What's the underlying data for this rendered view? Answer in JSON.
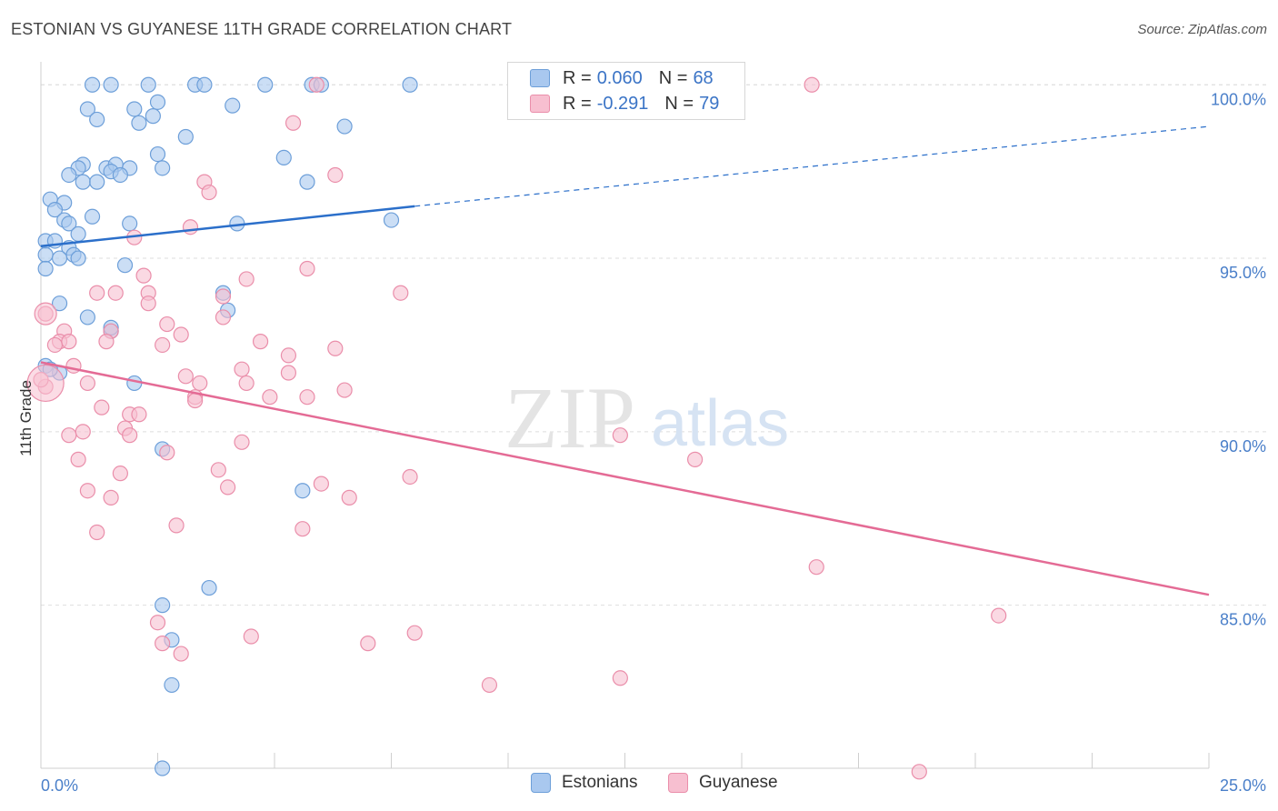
{
  "header": {
    "title": "ESTONIAN VS GUYANESE 11TH GRADE CORRELATION CHART",
    "source": "Source: ZipAtlas.com"
  },
  "legend": {
    "estonians": {
      "r_label": "R =",
      "r_value": "0.060",
      "n_label": "N =",
      "n_value": "68"
    },
    "guyanese": {
      "r_label": "R =",
      "r_value": "-0.291",
      "n_label": "N =",
      "n_value": "79"
    }
  },
  "series_labels": {
    "estonians": "Estonians",
    "guyanese": "Guyanese"
  },
  "watermark": {
    "zip": "ZIP",
    "atlas": "atlas"
  },
  "colors": {
    "blue_fill": "#a9c8ef",
    "blue_stroke": "#6d9fd9",
    "blue_line": "#2b6fca",
    "pink_fill": "#f7bfd0",
    "pink_stroke": "#ea8eaa",
    "pink_line": "#e46b95",
    "tick_text": "#4a7fc9",
    "grid": "#dedede"
  },
  "chart_data": {
    "type": "scatter",
    "title": "ESTONIAN VS GUYANESE 11TH GRADE CORRELATION CHART",
    "xlabel": "",
    "ylabel": "11th Grade",
    "xlim": [
      0,
      25
    ],
    "ylim": [
      80.3,
      100.4
    ],
    "x_tick_labels": [
      "0.0%",
      "25.0%"
    ],
    "y_ticks": [
      85,
      90,
      95,
      100
    ],
    "y_tick_labels": [
      "85.0%",
      "90.0%",
      "95.0%",
      "100.0%"
    ],
    "grid": true,
    "legend_position": "top-center",
    "series": [
      {
        "name": "Estonians",
        "r": 0.06,
        "n": 68,
        "trend": {
          "x": [
            0,
            8.0
          ],
          "y": [
            95.35,
            96.5
          ],
          "dashed_extension_x": [
            8.0,
            25
          ],
          "dashed_extension_y": [
            96.5,
            98.8
          ]
        },
        "points": [
          [
            1.1,
            100
          ],
          [
            1.5,
            100
          ],
          [
            2.3,
            100
          ],
          [
            3.3,
            100
          ],
          [
            3.5,
            100
          ],
          [
            4.8,
            100
          ],
          [
            5.8,
            100
          ],
          [
            6.0,
            100
          ],
          [
            7.9,
            100
          ],
          [
            1.0,
            99.3
          ],
          [
            2.0,
            99.3
          ],
          [
            2.4,
            99.1
          ],
          [
            2.5,
            99.5
          ],
          [
            4.1,
            99.4
          ],
          [
            1.2,
            99.0
          ],
          [
            2.1,
            98.9
          ],
          [
            6.5,
            98.8
          ],
          [
            3.1,
            98.5
          ],
          [
            0.9,
            97.7
          ],
          [
            1.4,
            97.6
          ],
          [
            1.6,
            97.7
          ],
          [
            2.5,
            98.0
          ],
          [
            5.2,
            97.9
          ],
          [
            1.9,
            97.6
          ],
          [
            2.6,
            97.6
          ],
          [
            0.8,
            97.6
          ],
          [
            0.6,
            97.4
          ],
          [
            0.9,
            97.2
          ],
          [
            1.2,
            97.2
          ],
          [
            1.5,
            97.5
          ],
          [
            5.7,
            97.2
          ],
          [
            0.2,
            96.7
          ],
          [
            0.5,
            96.6
          ],
          [
            0.3,
            96.4
          ],
          [
            1.1,
            96.2
          ],
          [
            0.5,
            96.1
          ],
          [
            0.6,
            96.0
          ],
          [
            1.9,
            96.0
          ],
          [
            4.2,
            96.0
          ],
          [
            7.5,
            96.1
          ],
          [
            0.8,
            95.7
          ],
          [
            0.1,
            95.5
          ],
          [
            0.3,
            95.5
          ],
          [
            0.6,
            95.3
          ],
          [
            0.1,
            95.1
          ],
          [
            0.4,
            95.0
          ],
          [
            0.7,
            95.1
          ],
          [
            0.8,
            95.0
          ],
          [
            1.8,
            94.8
          ],
          [
            0.1,
            94.7
          ],
          [
            3.9,
            94.0
          ],
          [
            0.4,
            93.7
          ],
          [
            1.0,
            93.3
          ],
          [
            1.5,
            92.9
          ],
          [
            1.5,
            93.0
          ],
          [
            0.1,
            91.9
          ],
          [
            0.4,
            91.7
          ],
          [
            2.0,
            91.4
          ],
          [
            2.6,
            89.5
          ],
          [
            5.6,
            88.3
          ],
          [
            3.6,
            85.5
          ],
          [
            2.6,
            85.0
          ],
          [
            2.8,
            84.0
          ],
          [
            2.8,
            82.7
          ],
          [
            2.6,
            80.3
          ],
          [
            0.2,
            91.8
          ],
          [
            4.0,
            93.5
          ],
          [
            1.7,
            97.4
          ]
        ]
      },
      {
        "name": "Guyanese",
        "r": -0.291,
        "n": 79,
        "trend": {
          "x": [
            0,
            25
          ],
          "y": [
            92.0,
            85.3
          ]
        },
        "points": [
          [
            5.9,
            100
          ],
          [
            16.5,
            100
          ],
          [
            5.4,
            98.9
          ],
          [
            6.3,
            97.4
          ],
          [
            3.5,
            97.2
          ],
          [
            3.6,
            96.9
          ],
          [
            3.2,
            95.9
          ],
          [
            2.0,
            95.6
          ],
          [
            5.7,
            94.7
          ],
          [
            2.2,
            94.5
          ],
          [
            4.4,
            94.4
          ],
          [
            1.2,
            94.0
          ],
          [
            1.6,
            94.0
          ],
          [
            2.3,
            94.0
          ],
          [
            3.9,
            93.9
          ],
          [
            7.7,
            94.0
          ],
          [
            2.3,
            93.7
          ],
          [
            0.1,
            93.4
          ],
          [
            2.7,
            93.1
          ],
          [
            3.9,
            93.3
          ],
          [
            0.5,
            92.9
          ],
          [
            1.5,
            92.9
          ],
          [
            3.0,
            92.8
          ],
          [
            0.4,
            92.6
          ],
          [
            0.3,
            92.5
          ],
          [
            0.6,
            92.6
          ],
          [
            1.4,
            92.6
          ],
          [
            2.6,
            92.5
          ],
          [
            4.7,
            92.6
          ],
          [
            6.3,
            92.4
          ],
          [
            5.3,
            92.2
          ],
          [
            0.7,
            91.9
          ],
          [
            4.3,
            91.8
          ],
          [
            3.1,
            91.6
          ],
          [
            5.3,
            91.7
          ],
          [
            0.1,
            91.3
          ],
          [
            1.0,
            91.4
          ],
          [
            3.4,
            91.4
          ],
          [
            4.4,
            91.4
          ],
          [
            6.5,
            91.2
          ],
          [
            3.3,
            91.0
          ],
          [
            3.3,
            90.9
          ],
          [
            4.9,
            91.0
          ],
          [
            5.7,
            91.0
          ],
          [
            1.3,
            90.7
          ],
          [
            1.9,
            90.5
          ],
          [
            2.1,
            90.5
          ],
          [
            1.8,
            90.1
          ],
          [
            0.9,
            90.0
          ],
          [
            0.6,
            89.9
          ],
          [
            1.9,
            89.9
          ],
          [
            12.4,
            89.9
          ],
          [
            4.3,
            89.7
          ],
          [
            2.7,
            89.4
          ],
          [
            0.8,
            89.2
          ],
          [
            14.0,
            89.2
          ],
          [
            3.8,
            88.9
          ],
          [
            1.7,
            88.8
          ],
          [
            7.9,
            88.7
          ],
          [
            6.0,
            88.5
          ],
          [
            4.0,
            88.4
          ],
          [
            1.0,
            88.3
          ],
          [
            1.5,
            88.1
          ],
          [
            6.6,
            88.1
          ],
          [
            2.9,
            87.3
          ],
          [
            5.6,
            87.2
          ],
          [
            1.2,
            87.1
          ],
          [
            16.6,
            86.1
          ],
          [
            20.5,
            84.7
          ],
          [
            2.5,
            84.5
          ],
          [
            8.0,
            84.2
          ],
          [
            4.5,
            84.1
          ],
          [
            2.6,
            83.9
          ],
          [
            7.0,
            83.9
          ],
          [
            3.0,
            83.6
          ],
          [
            12.4,
            82.9
          ],
          [
            9.6,
            82.7
          ],
          [
            18.8,
            80.2
          ],
          [
            0.0,
            91.5
          ]
        ]
      }
    ]
  }
}
